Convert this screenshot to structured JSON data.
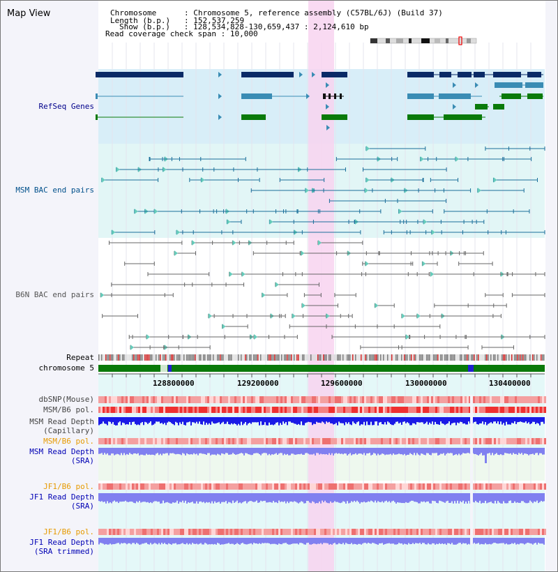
{
  "window": {
    "title": "Map View"
  },
  "info": {
    "chromosome_key": "Chromosome",
    "chromosome_value": "Chromosome 5, reference assembly (C57BL/6J) (Build 37)",
    "length_key": "Length (b.p.)",
    "length_value": "152,537,259",
    "show_key": "Show (b.p.)",
    "show_value": "128,534,828-130,659,437 : 2,124,610 bp",
    "coverage_key": "Read coverage check span",
    "coverage_value": "10,000",
    "separator": ":"
  },
  "axis": {
    "ticks": [
      "128800000",
      "129200000",
      "129600000",
      "130000000",
      "130400000"
    ]
  },
  "tracks": {
    "refseq": {
      "label": "RefSeq Genes",
      "color": "#00008b"
    },
    "msm_bac": {
      "label": "MSM BAC end pairs",
      "color": "#00508b"
    },
    "b6n_bac": {
      "label": "B6N BAC end pairs",
      "color": "#555555"
    },
    "repeat": {
      "label": "Repeat",
      "color": "#000000"
    },
    "chromosome": {
      "label": "chromosome 5",
      "color": "#000000"
    },
    "dbsnp": {
      "label": "dbSNP(Mouse)",
      "color": "#444444"
    },
    "msm_b6_pol_1": {
      "label": "MSM/B6 pol.",
      "color": "#444444"
    },
    "msm_depth_cap": {
      "label_line1": "MSM Read Depth",
      "label_line2": "(Capillary)",
      "color": "#444444"
    },
    "msm_b6_pol_2": {
      "label": "MSM/B6 pol.",
      "color": "#e69a00"
    },
    "msm_depth_sra": {
      "label_line1": "MSM Read Depth",
      "label_line2": "(SRA)",
      "color": "#0000b4"
    },
    "jf1_b6_pol_1": {
      "label": "JF1/B6 pol.",
      "color": "#e69a00"
    },
    "jf1_depth_sra": {
      "label_line1": "JF1 Read Depth",
      "label_line2": "(SRA)",
      "color": "#0000b4"
    },
    "jf1_b6_pol_2": {
      "label": "JF1/B6 pol.",
      "color": "#e69a00"
    },
    "jf1_depth_trim": {
      "label_line1": "JF1 Read Depth",
      "label_line2": "(SRA trimmed)",
      "color": "#0000b4"
    }
  },
  "colors": {
    "refseq_dark": "#0a2a66",
    "refseq_mid": "#3a8cb4",
    "refseq_green": "#0a7a0a",
    "highlight": "#f8d4f0",
    "chromosome_bar": "#0a7a0a",
    "depth_blue": "#1a1ae6",
    "depth_light": "#8080f0"
  }
}
